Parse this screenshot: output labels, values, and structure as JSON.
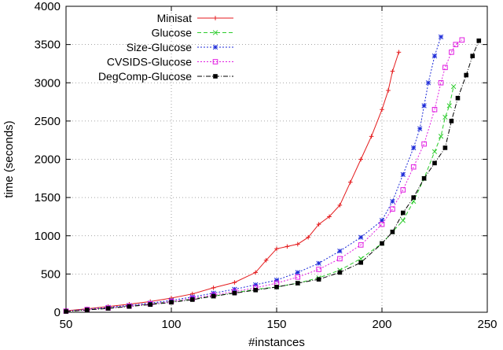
{
  "chart_data": {
    "type": "line",
    "title": "",
    "xlabel": "#instances",
    "ylabel": "time (seconds)",
    "xlim": [
      50,
      250
    ],
    "ylim": [
      0,
      4000
    ],
    "xticks": [
      50,
      100,
      150,
      200,
      250
    ],
    "yticks": [
      0,
      500,
      1000,
      1500,
      2000,
      2500,
      3000,
      3500,
      4000
    ],
    "grid": true,
    "legend_position": "top-left",
    "series": [
      {
        "name": "Minisat",
        "color": "#e41a1c",
        "marker": "plus",
        "dash": "solid",
        "x": [
          50,
          60,
          70,
          80,
          90,
          100,
          110,
          120,
          130,
          140,
          145,
          150,
          155,
          160,
          165,
          170,
          175,
          180,
          185,
          190,
          195,
          200,
          203,
          205,
          208
        ],
        "y": [
          20,
          45,
          75,
          105,
          140,
          185,
          240,
          320,
          390,
          520,
          680,
          830,
          860,
          890,
          980,
          1150,
          1250,
          1400,
          1700,
          2000,
          2300,
          2650,
          2900,
          3150,
          3400
        ]
      },
      {
        "name": "Glucose",
        "color": "#2ccc2c",
        "marker": "x",
        "dash": "dashed",
        "x": [
          50,
          60,
          70,
          80,
          90,
          100,
          110,
          120,
          130,
          140,
          150,
          160,
          170,
          180,
          190,
          200,
          205,
          210,
          215,
          220,
          225,
          228,
          230,
          232,
          234
        ],
        "y": [
          15,
          35,
          55,
          80,
          110,
          140,
          175,
          210,
          255,
          300,
          330,
          380,
          450,
          550,
          700,
          900,
          1050,
          1200,
          1450,
          1750,
          2100,
          2300,
          2550,
          2700,
          2950
        ]
      },
      {
        "name": "Size-Glucose",
        "color": "#1c2ad8",
        "marker": "star",
        "dash": "dotted",
        "x": [
          50,
          60,
          70,
          80,
          90,
          100,
          110,
          120,
          130,
          140,
          150,
          160,
          170,
          180,
          190,
          200,
          205,
          210,
          215,
          218,
          220,
          222,
          225,
          228
        ],
        "y": [
          15,
          40,
          65,
          90,
          120,
          155,
          200,
          250,
          300,
          360,
          420,
          520,
          640,
          800,
          980,
          1200,
          1450,
          1800,
          2150,
          2400,
          2700,
          3000,
          3350,
          3600
        ]
      },
      {
        "name": "CVSIDS-Glucose",
        "color": "#e11be1",
        "marker": "square",
        "dash": "dotted",
        "x": [
          50,
          60,
          70,
          80,
          90,
          100,
          110,
          120,
          130,
          140,
          150,
          160,
          170,
          180,
          190,
          200,
          205,
          210,
          215,
          220,
          225,
          228,
          230,
          233,
          235,
          238
        ],
        "y": [
          15,
          35,
          55,
          80,
          110,
          140,
          180,
          225,
          270,
          320,
          380,
          460,
          560,
          700,
          880,
          1150,
          1350,
          1600,
          1900,
          2200,
          2650,
          3000,
          3200,
          3400,
          3500,
          3560
        ]
      },
      {
        "name": "DegComp-Glucose",
        "color": "#000000",
        "marker": "filled-square",
        "dash": "dashdot",
        "x": [
          50,
          60,
          70,
          80,
          90,
          100,
          110,
          120,
          130,
          140,
          150,
          160,
          170,
          180,
          190,
          200,
          205,
          210,
          215,
          220,
          225,
          230,
          233,
          236,
          240,
          243,
          246
        ],
        "y": [
          10,
          30,
          50,
          75,
          100,
          130,
          165,
          210,
          250,
          290,
          330,
          380,
          430,
          520,
          650,
          900,
          1050,
          1300,
          1500,
          1750,
          1950,
          2150,
          2500,
          2800,
          3100,
          3350,
          3550
        ]
      }
    ]
  }
}
